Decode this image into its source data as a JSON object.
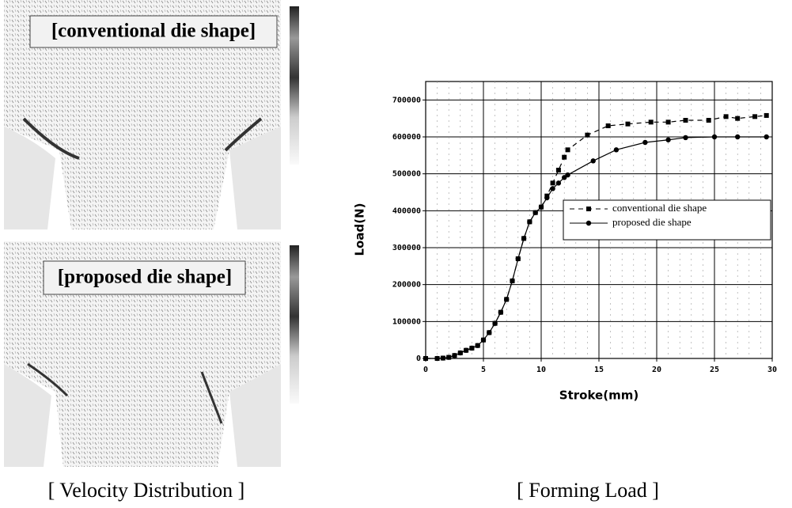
{
  "velocity_panel": {
    "labels": [
      "[conventional die shape]",
      "[proposed die shape]"
    ],
    "caption": "[ Velocity Distribution ]"
  },
  "chart_data": {
    "type": "line",
    "caption": "[ Forming Load ]",
    "x_label": "Stroke(mm)",
    "y_label": "Load(N)",
    "xlim": [
      0,
      30
    ],
    "xticks": [
      0,
      5,
      10,
      15,
      20,
      25,
      30
    ],
    "ylim": [
      0,
      750000
    ],
    "yticks": [
      0,
      100000,
      200000,
      300000,
      400000,
      500000,
      600000,
      700000
    ],
    "grid": true,
    "legend": "center right",
    "series": [
      {
        "name": "conventional die shape",
        "color": "#000000",
        "line_style": "dashed",
        "marker": "square",
        "x": [
          0,
          1,
          1.5,
          2,
          2.5,
          3,
          3.5,
          4,
          4.5,
          5,
          5.5,
          6,
          6.5,
          7,
          7.5,
          8,
          8.5,
          9,
          9.5,
          10,
          10.5,
          11,
          11.5,
          12,
          12.3,
          14,
          15.8,
          17.5,
          19.5,
          21,
          22.5,
          24.5,
          26,
          27,
          28.5,
          29.5
        ],
        "values": [
          0,
          0,
          1000,
          3000,
          8000,
          15000,
          22000,
          28000,
          35000,
          50000,
          70000,
          95000,
          125000,
          160000,
          210000,
          270000,
          325000,
          370000,
          395000,
          410000,
          440000,
          475000,
          510000,
          545000,
          565000,
          605000,
          630000,
          635000,
          640000,
          640000,
          645000,
          645000,
          655000,
          650000,
          655000,
          658000
        ]
      },
      {
        "name": "proposed die shape",
        "color": "#000000",
        "line_style": "solid",
        "marker": "circle",
        "x": [
          0,
          1,
          1.5,
          2,
          2.5,
          3,
          3.5,
          4,
          4.5,
          5,
          5.5,
          6,
          6.5,
          7,
          7.5,
          8,
          8.5,
          9,
          9.5,
          10,
          10.5,
          11,
          11.5,
          12,
          12.3,
          14.5,
          16.5,
          19,
          21,
          22.5,
          25,
          27,
          29.5
        ],
        "values": [
          0,
          0,
          1000,
          3000,
          8000,
          15000,
          22000,
          28000,
          35000,
          50000,
          70000,
          95000,
          125000,
          160000,
          210000,
          270000,
          325000,
          370000,
          395000,
          410000,
          435000,
          460000,
          475000,
          490000,
          497000,
          535000,
          565000,
          585000,
          592000,
          598000,
          600000,
          600000,
          600000
        ]
      }
    ]
  }
}
